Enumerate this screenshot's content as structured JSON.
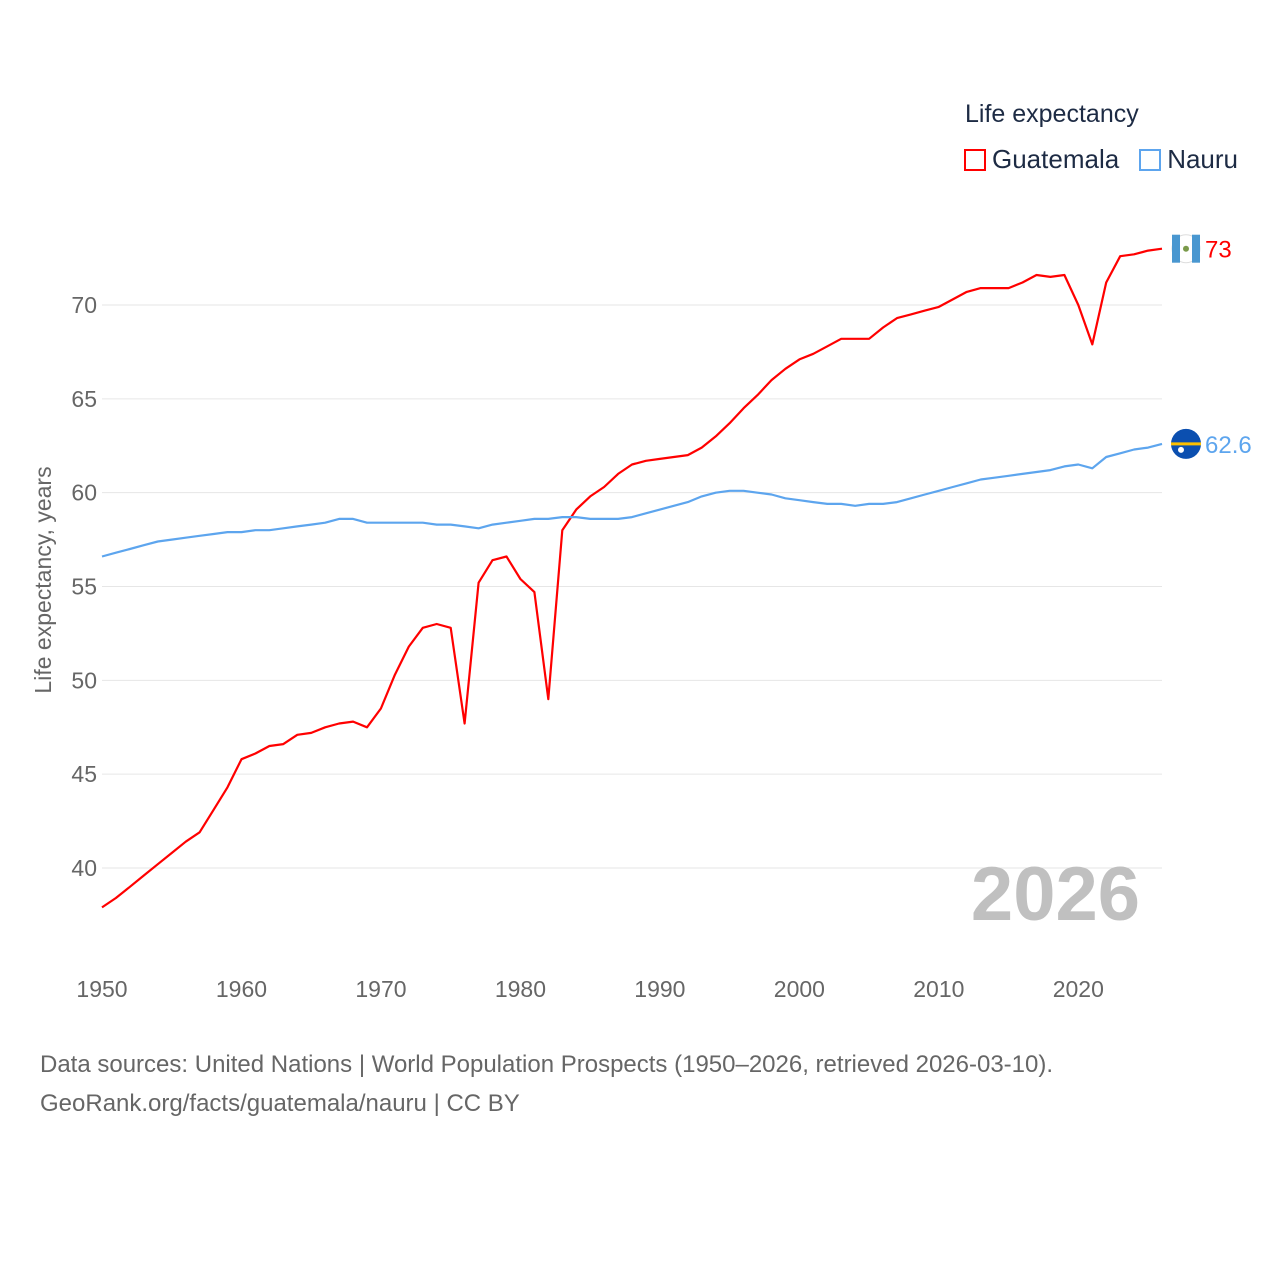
{
  "chart_data": {
    "type": "line",
    "title": "",
    "legend_title": "Life expectancy",
    "xlabel": "",
    "ylabel": "Life expectancy, years",
    "xlim": [
      1950,
      2026
    ],
    "ylim": [
      36,
      75
    ],
    "x_ticks": [
      1950,
      1960,
      1970,
      1980,
      1990,
      2000,
      2010,
      2020
    ],
    "y_ticks": [
      40,
      45,
      50,
      55,
      60,
      65,
      70
    ],
    "grid": true,
    "legend_position": "top-right",
    "year_label": "2026",
    "x": [
      1950,
      1951,
      1952,
      1953,
      1954,
      1955,
      1956,
      1957,
      1958,
      1959,
      1960,
      1961,
      1962,
      1963,
      1964,
      1965,
      1966,
      1967,
      1968,
      1969,
      1970,
      1971,
      1972,
      1973,
      1974,
      1975,
      1976,
      1977,
      1978,
      1979,
      1980,
      1981,
      1982,
      1983,
      1984,
      1985,
      1986,
      1987,
      1988,
      1989,
      1990,
      1991,
      1992,
      1993,
      1994,
      1995,
      1996,
      1997,
      1998,
      1999,
      2000,
      2001,
      2002,
      2003,
      2004,
      2005,
      2006,
      2007,
      2008,
      2009,
      2010,
      2011,
      2012,
      2013,
      2014,
      2015,
      2016,
      2017,
      2018,
      2019,
      2020,
      2021,
      2022,
      2023,
      2024,
      2025,
      2026
    ],
    "series": [
      {
        "name": "Guatemala",
        "color": "#ff0000",
        "end_label": "73",
        "values": [
          37.9,
          38.4,
          39.0,
          39.6,
          40.2,
          40.8,
          41.4,
          41.9,
          43.1,
          44.3,
          45.8,
          46.1,
          46.5,
          46.6,
          47.1,
          47.2,
          47.5,
          47.7,
          47.8,
          47.5,
          48.5,
          50.3,
          51.8,
          52.8,
          53.0,
          52.8,
          47.7,
          55.2,
          56.4,
          56.6,
          55.4,
          54.7,
          49.0,
          58.0,
          59.1,
          59.8,
          60.3,
          61.0,
          61.5,
          61.7,
          61.8,
          61.9,
          62.0,
          62.4,
          63.0,
          63.7,
          64.5,
          65.2,
          66.0,
          66.6,
          67.1,
          67.4,
          67.8,
          68.2,
          68.2,
          68.2,
          68.8,
          69.3,
          69.5,
          69.7,
          69.9,
          70.3,
          70.7,
          70.9,
          70.9,
          70.9,
          71.2,
          71.6,
          71.5,
          71.6,
          70.0,
          67.9,
          71.2,
          72.6,
          72.7,
          72.9,
          73.0
        ]
      },
      {
        "name": "Nauru",
        "color": "#5da5ee",
        "end_label": "62.6",
        "values": [
          56.6,
          56.8,
          57.0,
          57.2,
          57.4,
          57.5,
          57.6,
          57.7,
          57.8,
          57.9,
          57.9,
          58.0,
          58.0,
          58.1,
          58.2,
          58.3,
          58.4,
          58.6,
          58.6,
          58.4,
          58.4,
          58.4,
          58.4,
          58.4,
          58.3,
          58.3,
          58.2,
          58.1,
          58.3,
          58.4,
          58.5,
          58.6,
          58.6,
          58.7,
          58.7,
          58.6,
          58.6,
          58.6,
          58.7,
          58.9,
          59.1,
          59.3,
          59.5,
          59.8,
          60.0,
          60.1,
          60.1,
          60.0,
          59.9,
          59.7,
          59.6,
          59.5,
          59.4,
          59.4,
          59.3,
          59.4,
          59.4,
          59.5,
          59.7,
          59.9,
          60.1,
          60.3,
          60.5,
          60.7,
          60.8,
          60.9,
          61.0,
          61.1,
          61.2,
          61.4,
          61.5,
          61.3,
          61.9,
          62.1,
          62.3,
          62.4,
          62.6
        ]
      }
    ]
  },
  "source": {
    "line1": "Data sources: United Nations | World Population Prospects (1950–2026, retrieved 2026-03-10).",
    "line2": "GeoRank.org/facts/guatemala/nauru | CC BY"
  }
}
